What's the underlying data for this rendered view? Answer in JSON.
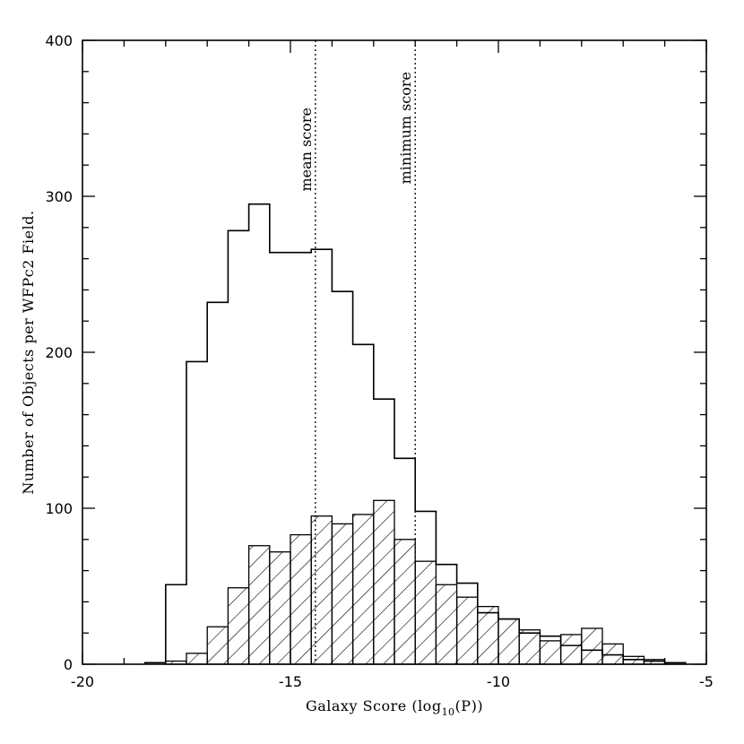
{
  "chart_data": {
    "type": "histogram",
    "title": "",
    "xlabel_prefix": "Galaxy Score (log",
    "xlabel_sub": "10",
    "xlabel_suffix": "(P))",
    "ylabel": "Number of Objects per WFPc2 Field.",
    "xlim": [
      -20,
      -5
    ],
    "ylim": [
      0,
      400
    ],
    "x_ticks": [
      -20,
      -15,
      -10,
      -5
    ],
    "y_ticks": [
      0,
      100,
      200,
      300,
      400
    ],
    "bin_edges": [
      -18.5,
      -18.0,
      -17.5,
      -17.0,
      -16.5,
      -16.0,
      -15.5,
      -15.0,
      -14.5,
      -14.0,
      -13.5,
      -13.0,
      -12.5,
      -12.0,
      -11.5,
      -11.0,
      -10.5,
      -10.0,
      -9.5,
      -9.0,
      -8.5,
      -8.0,
      -7.5,
      -7.0,
      -6.5,
      -6.0,
      -5.5
    ],
    "series": [
      {
        "style": "open",
        "values": [
          1,
          51,
          194,
          232,
          278,
          295,
          264,
          264,
          266,
          239,
          205,
          170,
          132,
          98,
          64,
          52,
          33,
          29,
          20,
          18,
          12,
          9,
          6,
          3,
          2,
          1
        ]
      },
      {
        "style": "hatched",
        "values": [
          0,
          2,
          7,
          24,
          49,
          76,
          72,
          83,
          95,
          90,
          96,
          105,
          80,
          66,
          51,
          43,
          37,
          29,
          22,
          15,
          19,
          23,
          13,
          5,
          3,
          1
        ]
      }
    ],
    "annotations": [
      {
        "x": -14.4,
        "label": "mean score",
        "line": "dotted"
      },
      {
        "x": -12.0,
        "label": "minimum score",
        "line": "dotted"
      }
    ],
    "grid": false
  }
}
